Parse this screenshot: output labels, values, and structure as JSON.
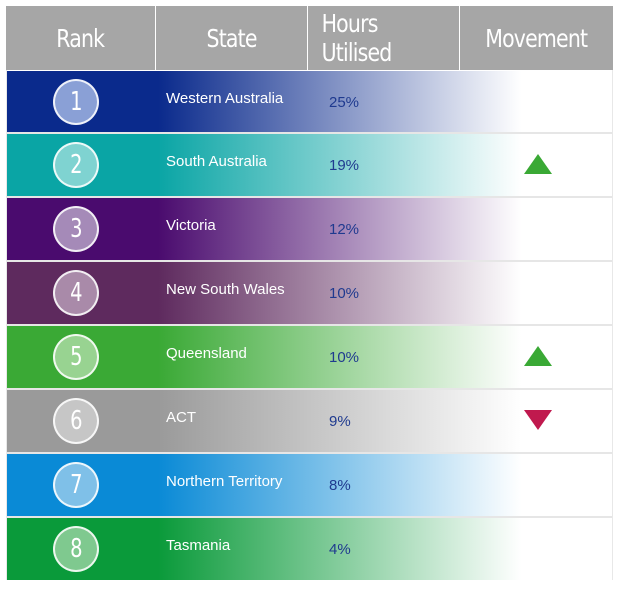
{
  "header": {
    "rank_label": "Rank",
    "state_label": "State",
    "hours_label": "Hours Utilised",
    "movement_label": "Movement"
  },
  "rows": [
    {
      "rank": "1",
      "state": "Western Australia",
      "hours": "25%",
      "movement": "none",
      "color": "#0a2a8c",
      "badge": "#8aa0d6"
    },
    {
      "rank": "2",
      "state": "South Australia",
      "hours": "19%",
      "movement": "up",
      "color": "#0aa5a5",
      "badge": "#7fd3d1"
    },
    {
      "rank": "3",
      "state": "Victoria",
      "hours": "12%",
      "movement": "none",
      "color": "#4a0b6e",
      "badge": "#a58ab8"
    },
    {
      "rank": "4",
      "state": "New South Wales",
      "hours": "10%",
      "movement": "none",
      "color": "#5e2a5e",
      "badge": "#a98aa9"
    },
    {
      "rank": "5",
      "state": "Queensland",
      "hours": "10%",
      "movement": "up",
      "color": "#3aa935",
      "badge": "#98d391"
    },
    {
      "rank": "6",
      "state": "ACT",
      "hours": "9%",
      "movement": "down",
      "color": "#9a9a9a",
      "badge": "#c6c6c6"
    },
    {
      "rank": "7",
      "state": "Northern Territory",
      "hours": "8%",
      "movement": "none",
      "color": "#0a8ad6",
      "badge": "#7fc0e8"
    },
    {
      "rank": "8",
      "state": "Tasmania",
      "hours": "4%",
      "movement": "none",
      "color": "#0a9a3a",
      "badge": "#7fc98f"
    }
  ],
  "colors": {
    "header_bg": "#a6a6a6",
    "up_arrow": "#3aa935",
    "down_arrow": "#c0194e",
    "hours_text": "#1f3a8f"
  }
}
